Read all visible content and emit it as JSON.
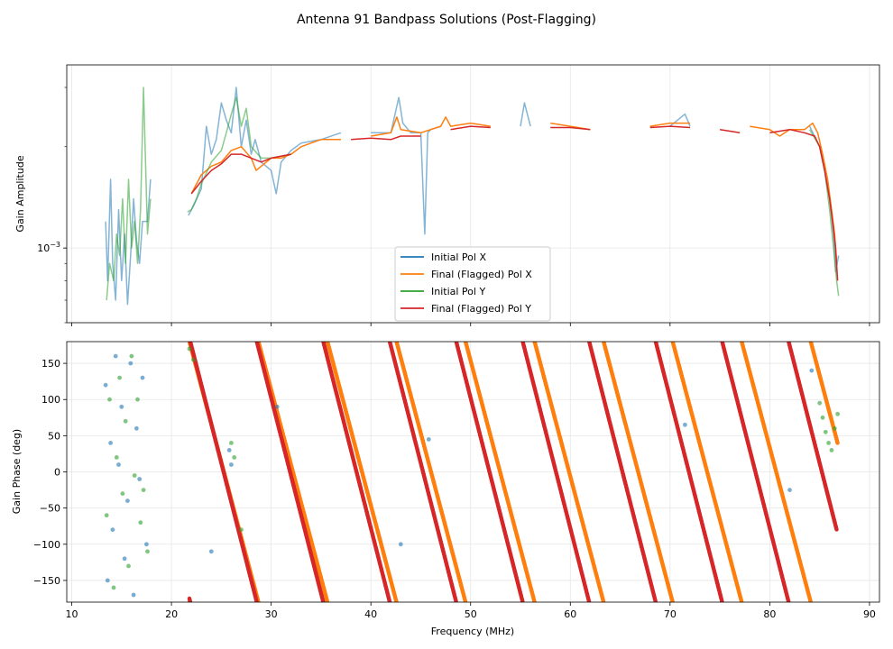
{
  "chart_data": {
    "title": "Antenna 91 Bandpass Solutions (Post-Flagging)",
    "xlabel": "Frequency (MHz)",
    "xlim": [
      9.5,
      91
    ],
    "xticks": [
      10,
      20,
      30,
      40,
      50,
      60,
      70,
      80,
      90
    ],
    "colors": {
      "initial_x": "#1f77b4",
      "final_x": "#ff7f0e",
      "initial_y": "#2ca02c",
      "final_y": "#d62728"
    },
    "panels": [
      {
        "type": "line",
        "ylabel": "Gain Amplitude",
        "yscale": "log",
        "ylim": [
          0.0006,
          0.0035
        ],
        "yticks": [
          {
            "value": 0.001,
            "label": "10^-3"
          }
        ],
        "legend": {
          "position": "lower-center",
          "entries": [
            "Initial Pol X",
            "Final (Flagged) Pol X",
            "Initial Pol Y",
            "Final (Flagged) Pol Y"
          ]
        },
        "series": [
          {
            "name": "Initial Pol X",
            "key": "initial_x",
            "x": [
              13.4,
              13.6,
              13.9,
              14.1,
              14.4,
              14.7,
              15.0,
              15.3,
              15.6,
              15.9,
              16.2,
              16.5,
              16.8,
              17.1,
              17.6,
              17.9,
              21.7,
              22.3,
              23.0,
              23.5,
              24.0,
              24.5,
              25.0,
              25.5,
              26.0,
              26.5,
              27.0,
              27.5,
              28.0,
              28.4,
              29.0,
              30.0,
              30.5,
              31.0,
              32.0,
              33.0,
              35.0,
              37.0,
              40.0,
              42.0,
              42.8,
              43.2,
              44.0,
              45.0,
              45.4,
              45.7,
              46.0,
              47.0,
              50.0,
              55.0,
              55.4,
              56.0,
              60.0,
              65.0,
              70.0,
              71.5,
              72.0,
              75.0,
              80.0,
              84.0,
              85.0,
              85.5,
              86.0,
              86.4,
              86.6,
              86.9
            ],
            "y": [
              0.0012,
              0.0008,
              0.0016,
              0.0009,
              0.0007,
              0.0013,
              0.0008,
              0.0011,
              0.00068,
              0.00095,
              0.0014,
              0.00105,
              0.0009,
              0.0012,
              0.0012,
              0.0016,
              0.00125,
              0.00135,
              0.0015,
              0.0023,
              0.0019,
              0.0021,
              0.0027,
              0.0024,
              0.0022,
              0.003,
              0.002,
              0.0024,
              0.0019,
              0.0021,
              0.0018,
              0.0017,
              0.00145,
              0.0018,
              0.00195,
              0.00205,
              0.0021,
              0.0022,
              0.0022,
              0.0022,
              0.0028,
              0.00235,
              0.0022,
              0.0022,
              0.0011,
              0.0022,
              0.00225,
              0.0023,
              0.00235,
              0.0023,
              0.0027,
              0.0023,
              0.0023,
              0.00225,
              0.0023,
              0.0025,
              0.0023,
              0.0023,
              0.0022,
              0.0023,
              0.002,
              0.0017,
              0.0014,
              0.0011,
              0.00085,
              0.00095
            ]
          },
          {
            "name": "Final (Flagged) Pol X",
            "key": "final_x",
            "x": [
              22.0,
              23.0,
              24.0,
              25.0,
              26.0,
              27.0,
              28.0,
              28.5,
              29.0,
              30.0,
              31.0,
              32.0,
              33.0,
              34.0,
              35.0,
              37.0,
              40.0,
              42.0,
              42.6,
              43.0,
              45.0,
              47.0,
              47.5,
              48.0,
              50.0,
              52.0,
              55.0,
              58.0,
              60.0,
              62.0,
              65.0,
              68.0,
              70.0,
              72.0,
              75.0,
              78.0,
              80.0,
              81.0,
              82.0,
              83.5,
              84.3,
              84.8,
              85.3,
              85.8,
              86.2,
              86.5,
              86.7
            ],
            "y": [
              0.00145,
              0.00165,
              0.00175,
              0.0018,
              0.00195,
              0.002,
              0.00185,
              0.0017,
              0.00175,
              0.00185,
              0.00185,
              0.0019,
              0.002,
              0.00205,
              0.0021,
              0.0021,
              0.00215,
              0.0022,
              0.00245,
              0.00225,
              0.0022,
              0.0023,
              0.00245,
              0.0023,
              0.00235,
              0.0023,
              0.00235,
              0.00235,
              0.0023,
              0.00225,
              0.0023,
              0.0023,
              0.00235,
              0.00235,
              0.0023,
              0.0023,
              0.00225,
              0.00215,
              0.00225,
              0.00225,
              0.00235,
              0.0022,
              0.0019,
              0.0016,
              0.0013,
              0.0011,
              0.0009
            ]
          },
          {
            "name": "Initial Pol Y",
            "key": "initial_y",
            "x": [
              13.5,
              13.8,
              14.2,
              14.5,
              14.8,
              15.1,
              15.4,
              15.7,
              16.0,
              16.3,
              16.6,
              16.9,
              17.2,
              17.6,
              17.9,
              21.6,
              22.0,
              22.5,
              23.0,
              24.0,
              25.0,
              25.5,
              26.0,
              26.5,
              27.0,
              27.5,
              28.0,
              29.0,
              30.0,
              32.0,
              35.0,
              40.0,
              45.0,
              50.0,
              55.0,
              60.0,
              65.0,
              70.0,
              75.0,
              80.0,
              84.0,
              85.0,
              85.5,
              86.0,
              86.4,
              86.7,
              86.9
            ],
            "y": [
              0.0007,
              0.0009,
              0.0008,
              0.0011,
              0.00095,
              0.0014,
              0.0009,
              0.0016,
              0.001,
              0.0012,
              0.0009,
              0.0013,
              0.003,
              0.0011,
              0.0014,
              0.00128,
              0.0013,
              0.0014,
              0.00155,
              0.0018,
              0.00195,
              0.0022,
              0.0025,
              0.0028,
              0.0023,
              0.0026,
              0.002,
              0.00185,
              0.00185,
              0.0019,
              0.00205,
              0.0021,
              0.0022,
              0.00225,
              0.00225,
              0.00225,
              0.00225,
              0.00225,
              0.0022,
              0.00225,
              0.00225,
              0.002,
              0.0017,
              0.0013,
              0.001,
              0.0008,
              0.00072
            ]
          },
          {
            "name": "Final (Flagged) Pol Y",
            "key": "final_y",
            "x": [
              22.0,
              23.0,
              24.0,
              25.0,
              26.0,
              27.0,
              28.0,
              29.0,
              30.0,
              32.0,
              35.0,
              38.0,
              40.0,
              42.0,
              43.0,
              45.0,
              48.0,
              50.0,
              52.0,
              55.0,
              58.0,
              60.0,
              62.0,
              65.0,
              68.0,
              70.0,
              72.0,
              75.0,
              77.0,
              80.0,
              82.0,
              83.5,
              84.5,
              85.0,
              85.5,
              86.0,
              86.3,
              86.6,
              86.8
            ],
            "y": [
              0.00145,
              0.00158,
              0.0017,
              0.00178,
              0.0019,
              0.0019,
              0.00185,
              0.0018,
              0.00185,
              0.0019,
              0.00205,
              0.0021,
              0.00212,
              0.0021,
              0.00215,
              0.00215,
              0.00225,
              0.0023,
              0.00228,
              0.0023,
              0.00228,
              0.00228,
              0.00225,
              0.00228,
              0.00228,
              0.0023,
              0.00228,
              0.00225,
              0.0022,
              0.0022,
              0.00225,
              0.0022,
              0.00215,
              0.002,
              0.0017,
              0.0014,
              0.0012,
              0.001,
              0.0008
            ]
          }
        ]
      },
      {
        "type": "scatter",
        "ylabel": "Gain Phase (deg)",
        "ylim": [
          -180,
          180
        ],
        "yticks": [
          -150,
          -100,
          -50,
          0,
          50,
          100,
          150
        ],
        "phase_wraps": {
          "final_x": {
            "start": 21.8,
            "end": 86.8,
            "slope_deg_per_mhz": -52,
            "phase_at_start": 180
          },
          "final_y": {
            "start": 21.8,
            "end": 86.7,
            "slope_deg_per_mhz": -54,
            "phase_at_start": 185
          }
        },
        "series": [
          {
            "name": "Initial Pol X",
            "key": "initial_x",
            "x": [
              13.4,
              13.6,
              13.9,
              14.1,
              14.4,
              14.7,
              15.0,
              15.3,
              15.6,
              15.9,
              16.2,
              16.5,
              16.8,
              17.1,
              17.5,
              24.0,
              25.8,
              26.0,
              30.6,
              43.0,
              45.8,
              71.5,
              82.0,
              84.2
            ],
            "y": [
              120,
              -150,
              40,
              -80,
              160,
              10,
              90,
              -120,
              -40,
              150,
              -170,
              60,
              -10,
              130,
              -100,
              -110,
              30,
              10,
              90,
              -100,
              45,
              65,
              -25,
              140
            ]
          },
          {
            "name": "Initial Pol Y",
            "key": "initial_y",
            "x": [
              13.5,
              13.8,
              14.2,
              14.5,
              14.8,
              15.1,
              15.4,
              15.7,
              16.0,
              16.3,
              16.6,
              16.9,
              17.2,
              17.6,
              21.8,
              22.2,
              26.0,
              26.3,
              27.0,
              85.0,
              85.3,
              85.6,
              85.9,
              86.2,
              86.5,
              86.8
            ],
            "y": [
              -60,
              100,
              -160,
              20,
              130,
              -30,
              70,
              -130,
              160,
              -5,
              100,
              -70,
              -25,
              -110,
              170,
              155,
              40,
              20,
              -80,
              95,
              75,
              55,
              40,
              30,
              60,
              80
            ]
          }
        ]
      }
    ]
  }
}
